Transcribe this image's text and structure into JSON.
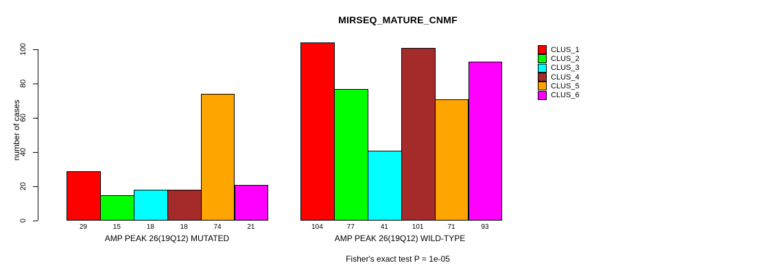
{
  "chart_data": {
    "type": "bar",
    "title": "MIRSEQ_MATURE_CNMF",
    "ylabel": "number of cases",
    "xlabel": "",
    "ylim": [
      0,
      105
    ],
    "yticks": [
      0,
      20,
      40,
      60,
      80,
      100
    ],
    "grid": false,
    "legend_position": "right",
    "categories": [
      "AMP PEAK 26(19Q12) MUTATED",
      "AMP PEAK 26(19Q12) WILD-TYPE"
    ],
    "series": [
      {
        "name": "CLUS_1",
        "color": "#FF0000",
        "values": [
          29,
          104
        ]
      },
      {
        "name": "CLUS_2",
        "color": "#00FF00",
        "values": [
          15,
          77
        ]
      },
      {
        "name": "CLUS_3",
        "color": "#00FFFF",
        "values": [
          18,
          41
        ]
      },
      {
        "name": "CLUS_4",
        "color": "#A52A2A",
        "values": [
          18,
          101
        ]
      },
      {
        "name": "CLUS_5",
        "color": "#FFA500",
        "values": [
          74,
          71
        ]
      },
      {
        "name": "CLUS_6",
        "color": "#FF00FF",
        "values": [
          21,
          93
        ]
      }
    ],
    "legend": {
      "entries": [
        {
          "label": "CLUS_1",
          "color": "#FF0000"
        },
        {
          "label": "CLUS_2",
          "color": "#00FF00"
        },
        {
          "label": "CLUS_3",
          "color": "#00FFFF"
        },
        {
          "label": "CLUS_4",
          "color": "#A52A2A"
        },
        {
          "label": "CLUS_5",
          "color": "#FFA500"
        },
        {
          "label": "CLUS_6",
          "color": "#FF00FF"
        }
      ]
    },
    "bar_value_labels_shown": true,
    "footnote": "Fisher's exact test P = 1e-05"
  }
}
